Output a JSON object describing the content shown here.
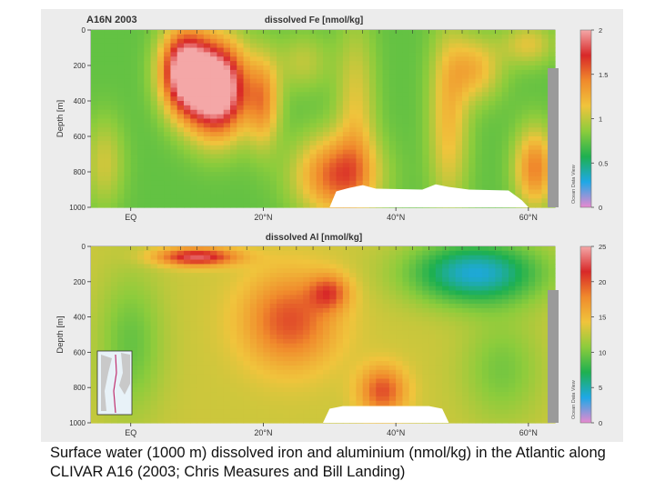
{
  "caption": "Surface water (1000 m) dissolved iron and aluminium (nmol/kg) in the Atlantic along CLIVAR A16 (2003; Chris Measures and Bill Landing)",
  "colors": {
    "scale": [
      "#e889d0",
      "#1ea8e6",
      "#1eb050",
      "#8ccc3c",
      "#f0c43c",
      "#f08a2c",
      "#d82828",
      "#f4a8a8"
    ],
    "seafloor": "#ffffff",
    "panel_bg": "#ececec",
    "contour": "#2a2a2a"
  },
  "watermark": "Ocean Data View",
  "chart_data": [
    {
      "type": "heatmap",
      "section_label": "A16N 2003",
      "title": "dissolved Fe [nmol/kg]",
      "ylabel": "Depth [m]",
      "xlabel": "",
      "x_ticks": [
        "EQ",
        "20°N",
        "40°N",
        "60°N"
      ],
      "x_tick_values": [
        0,
        20,
        40,
        60
      ],
      "xlim": [
        -6,
        64
      ],
      "y_ticks": [
        "0",
        "200",
        "400",
        "600",
        "800",
        "1000"
      ],
      "ylim": [
        0,
        1000
      ],
      "colorbar_ticks": [
        "2",
        "1.5",
        "1",
        "0.5",
        "0"
      ],
      "colorbar_range": [
        0,
        2
      ],
      "blobs": [
        {
          "x": 8,
          "y": 230,
          "sx": 3.5,
          "sy": 230,
          "v": 1.3
        },
        {
          "x": 13,
          "y": 330,
          "sx": 4.5,
          "sy": 260,
          "v": 1.6
        },
        {
          "x": 20,
          "y": 400,
          "sx": 2.5,
          "sy": 250,
          "v": 0.6
        },
        {
          "x": 31,
          "y": 820,
          "sx": 6,
          "sy": 220,
          "v": 0.8
        },
        {
          "x": 34,
          "y": 450,
          "sx": 3,
          "sy": 500,
          "v": 0.35
        },
        {
          "x": 48,
          "y": 500,
          "sx": 3,
          "sy": 500,
          "v": 0.45
        },
        {
          "x": 52,
          "y": 220,
          "sx": 4,
          "sy": 180,
          "v": 0.45
        },
        {
          "x": 61,
          "y": 780,
          "sx": 3,
          "sy": 220,
          "v": 0.7
        },
        {
          "x": 60,
          "y": 80,
          "sx": 4,
          "sy": 120,
          "v": 0.35
        },
        {
          "x": -4,
          "y": 750,
          "sx": 3,
          "sy": 250,
          "v": 0.3
        },
        {
          "x": 26,
          "y": 180,
          "sx": 4,
          "sy": 160,
          "v": 0.25
        }
      ],
      "base_value": 0.75,
      "seafloor": [
        [
          30,
          1000
        ],
        [
          31,
          910
        ],
        [
          33,
          890
        ],
        [
          35,
          875
        ],
        [
          37,
          895
        ],
        [
          44,
          900
        ],
        [
          46,
          870
        ],
        [
          48,
          885
        ],
        [
          51,
          900
        ],
        [
          57,
          905
        ],
        [
          59,
          960
        ],
        [
          60,
          1000
        ]
      ]
    },
    {
      "type": "heatmap",
      "title": "dissolved Al [nmol/kg]",
      "ylabel": "Depth [m]",
      "xlabel": "",
      "x_ticks": [
        "EQ",
        "20°N",
        "40°N",
        "60°N"
      ],
      "x_tick_values": [
        0,
        20,
        40,
        60
      ],
      "xlim": [
        -6,
        64
      ],
      "y_ticks": [
        "0",
        "200",
        "400",
        "600",
        "800",
        "1000"
      ],
      "ylim": [
        0,
        1000
      ],
      "colorbar_ticks": [
        "25",
        "20",
        "15",
        "10",
        "5",
        "0"
      ],
      "colorbar_range": [
        0,
        25
      ],
      "blobs": [
        {
          "x": 24,
          "y": 420,
          "sx": 7,
          "sy": 260,
          "v": 7
        },
        {
          "x": 30,
          "y": 260,
          "sx": 3,
          "sy": 100,
          "v": 6
        },
        {
          "x": 38,
          "y": 820,
          "sx": 3.5,
          "sy": 140,
          "v": 7
        },
        {
          "x": 10,
          "y": 60,
          "sx": 6,
          "sy": 50,
          "v": 10
        },
        {
          "x": 52,
          "y": 150,
          "sx": 10,
          "sy": 180,
          "v": -9
        },
        {
          "x": 0,
          "y": 550,
          "sx": 5,
          "sy": 400,
          "v": -3.5
        },
        {
          "x": 56,
          "y": 700,
          "sx": 6,
          "sy": 300,
          "v": -3
        }
      ],
      "base_value": 13,
      "seafloor": [
        [
          29,
          1000
        ],
        [
          30,
          920
        ],
        [
          32,
          905
        ],
        [
          45,
          905
        ],
        [
          47,
          920
        ],
        [
          48,
          1000
        ]
      ]
    }
  ]
}
